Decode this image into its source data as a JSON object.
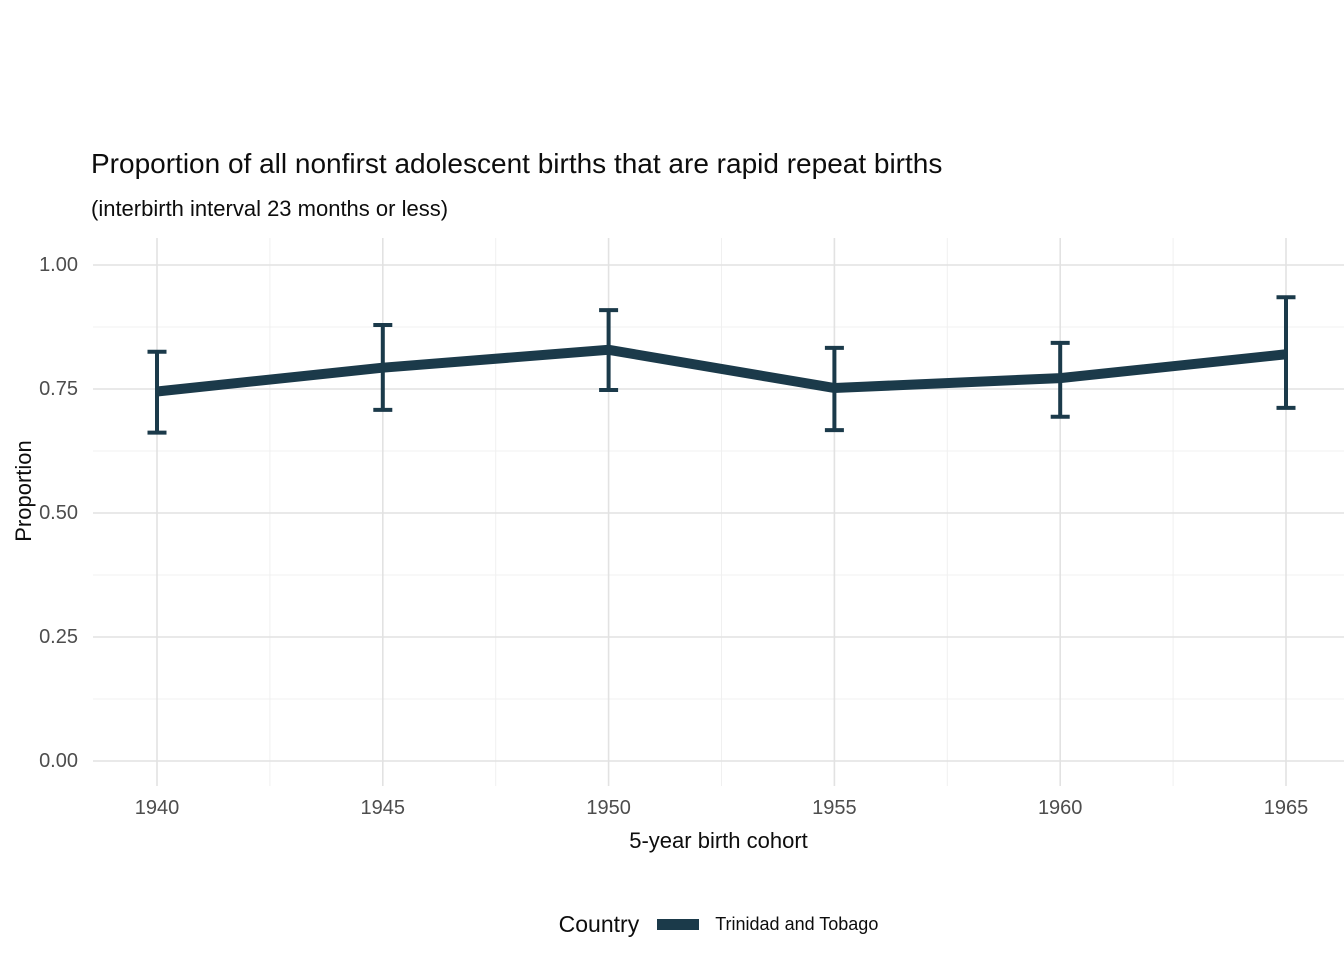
{
  "title": "Proportion of all nonfirst adolescent births that are rapid repeat births",
  "subtitle": "(interbirth interval 23 months or less)",
  "y_axis": {
    "title": "Proportion",
    "tick_labels": [
      "0.00",
      "0.25",
      "0.50",
      "0.75",
      "1.00"
    ]
  },
  "x_axis": {
    "title": "5-year birth cohort",
    "tick_labels": [
      "1940",
      "1945",
      "1950",
      "1955",
      "1960",
      "1965"
    ]
  },
  "legend": {
    "title": "Country",
    "items": [
      {
        "label": "Trinidad and Tobago",
        "color": "#1b3a4a"
      }
    ],
    "position": "bottom"
  },
  "colors": {
    "line": "#1b3a4a",
    "grid_major": "#e2e2e2",
    "grid_minor": "#f0f0f0",
    "tick_text": "#4d4d4d",
    "background": "#ffffff"
  },
  "chart_data": {
    "type": "line",
    "title": "Proportion of all nonfirst adolescent births that are rapid repeat births",
    "subtitle": "(interbirth interval 23 months or less)",
    "xlabel": "5-year birth cohort",
    "ylabel": "Proportion",
    "x": [
      1940,
      1945,
      1950,
      1955,
      1960,
      1965
    ],
    "xticks": [
      1940,
      1945,
      1950,
      1955,
      1960,
      1965
    ],
    "yticks": [
      0,
      0.25,
      0.5,
      0.75,
      1.0
    ],
    "yticks_minor": [
      0.125,
      0.375,
      0.625,
      0.875
    ],
    "xticks_minor": [
      1942.5,
      1947.5,
      1952.5,
      1957.5,
      1962.5
    ],
    "ylim": [
      0,
      1
    ],
    "xlim": [
      1938,
      1966.3
    ],
    "grid": true,
    "error_bars": true,
    "legend_position": "bottom",
    "series": [
      {
        "name": "Trinidad and Tobago",
        "color": "#1b3a4a",
        "values": [
          0.745,
          0.793,
          0.829,
          0.752,
          0.772,
          0.82
        ],
        "ci_low": [
          0.662,
          0.708,
          0.748,
          0.667,
          0.694,
          0.712
        ],
        "ci_high": [
          0.825,
          0.879,
          0.909,
          0.833,
          0.843,
          0.935
        ]
      }
    ]
  }
}
